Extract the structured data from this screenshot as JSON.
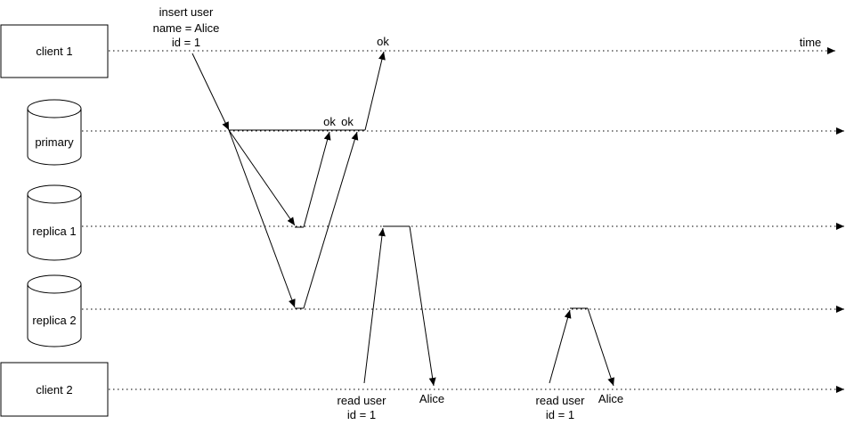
{
  "participants": {
    "client1": "client 1",
    "primary": "primary",
    "replica1": "replica 1",
    "replica2": "replica 2",
    "client2": "client 2"
  },
  "axis_label": "time",
  "insert_request": [
    "insert user",
    "name = Alice",
    "id = 1"
  ],
  "primary_acks": [
    "ok",
    "ok"
  ],
  "client_ack": "ok",
  "read_request_1": [
    "read user",
    "id = 1"
  ],
  "read_response_1": "Alice",
  "read_request_2": [
    "read user",
    "id = 1"
  ],
  "read_response_2": "Alice"
}
